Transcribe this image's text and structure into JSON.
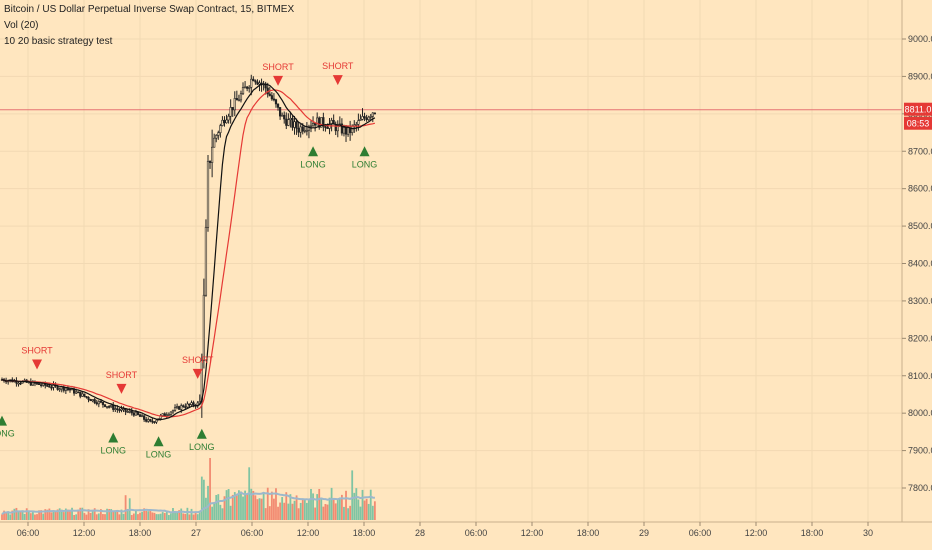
{
  "legend": {
    "symbol_line": "Bitcoin / US Dollar Perpetual Inverse Swap Contract, 15, BITMEX",
    "volume_line": "Vol (20)",
    "strategy_line": "10 20 basic strategy test"
  },
  "price_tags": {
    "last_price": "8811.0",
    "countdown": "08:53"
  },
  "colors": {
    "background": "#ffe6bf",
    "up": "#2e7d32",
    "down": "#e53935",
    "candle": "#222222",
    "ma_fast": "#111111",
    "ma_slow": "#e53935",
    "vol_up": "#7fc4a3",
    "vol_down": "#f28b72",
    "vol_ma": "#9db8cc",
    "price_line": "#e57373"
  },
  "x_axis_labels": [
    "06:00",
    "12:00",
    "18:00",
    "27",
    "06:00",
    "12:00",
    "18:00",
    "28",
    "06:00",
    "12:00",
    "18:00",
    "29",
    "06:00",
    "12:00",
    "18:00",
    "30"
  ],
  "y_axis_labels": [
    "9000.0",
    "8900.0",
    "8800.0",
    "8700.0",
    "8600.0",
    "8500.0",
    "8400.0",
    "8300.0",
    "8200.0",
    "8100.0",
    "8000.0",
    "7900.0",
    "7800.0"
  ],
  "chart_data": {
    "type": "candlestick",
    "timeframe": "15",
    "ylim": [
      7780,
      9060
    ],
    "last_price": 8811.0,
    "x_ticks": [
      "06:00",
      "12:00",
      "18:00",
      "27",
      "06:00",
      "12:00",
      "18:00",
      "28",
      "06:00",
      "12:00",
      "18:00",
      "29",
      "06:00",
      "12:00",
      "18:00",
      "30"
    ],
    "anchors": [
      {
        "t": 0,
        "p": 8090
      },
      {
        "t": 8,
        "p": 8085
      },
      {
        "t": 20,
        "p": 8075
      },
      {
        "t": 32,
        "p": 8065
      },
      {
        "t": 44,
        "p": 8035
      },
      {
        "t": 56,
        "p": 8010
      },
      {
        "t": 64,
        "p": 8000
      },
      {
        "t": 72,
        "p": 7975
      },
      {
        "t": 80,
        "p": 8000
      },
      {
        "t": 88,
        "p": 8020
      },
      {
        "t": 96,
        "p": 8025
      },
      {
        "t": 98,
        "p": 8300
      },
      {
        "t": 100,
        "p": 8650
      },
      {
        "t": 102,
        "p": 8720
      },
      {
        "t": 108,
        "p": 8790
      },
      {
        "t": 116,
        "p": 8850
      },
      {
        "t": 122,
        "p": 8900
      },
      {
        "t": 128,
        "p": 8870
      },
      {
        "t": 136,
        "p": 8790
      },
      {
        "t": 144,
        "p": 8760
      },
      {
        "t": 152,
        "p": 8780
      },
      {
        "t": 160,
        "p": 8770
      },
      {
        "t": 168,
        "p": 8750
      },
      {
        "t": 176,
        "p": 8790
      },
      {
        "t": 181,
        "p": 8811
      }
    ],
    "signals": [
      {
        "type": "SHORT",
        "t": 17,
        "price": 8090
      },
      {
        "type": "LONG",
        "t": 0,
        "price": 8020
      },
      {
        "type": "SHORT",
        "t": 58,
        "price": 8025
      },
      {
        "type": "LONG",
        "t": 54,
        "price": 7975
      },
      {
        "type": "LONG",
        "t": 76,
        "price": 7965
      },
      {
        "type": "SHORT",
        "t": 95,
        "price": 8065
      },
      {
        "type": "LONG",
        "t": 97,
        "price": 7985
      },
      {
        "type": "SHORT",
        "t": 134,
        "price": 8848
      },
      {
        "type": "LONG",
        "t": 151,
        "price": 8740
      },
      {
        "type": "SHORT",
        "t": 163,
        "price": 8850
      },
      {
        "type": "LONG",
        "t": 176,
        "price": 8740
      }
    ],
    "volume_spikes": [
      [
        97,
        0.7
      ],
      [
        98,
        0.65
      ],
      [
        100,
        0.55
      ],
      [
        101,
        1.0
      ],
      [
        110,
        0.5
      ],
      [
        120,
        0.85
      ],
      [
        170,
        0.8
      ],
      [
        60,
        0.4
      ],
      [
        62,
        0.35
      ]
    ],
    "indicators": [
      "MA 10",
      "MA 20",
      "Vol (20)"
    ]
  }
}
